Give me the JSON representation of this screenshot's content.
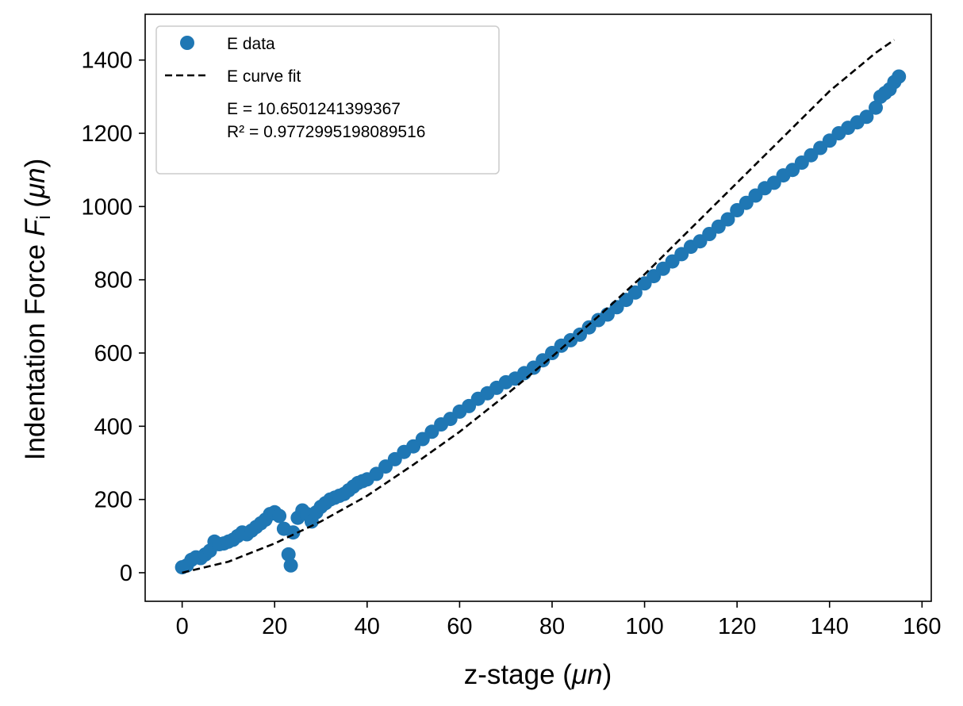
{
  "chart_data": {
    "type": "scatter",
    "title": "",
    "xlabel": {
      "prefix": "z-stage (",
      "unit": "μn",
      "suffix": ")"
    },
    "ylabel": {
      "prefix": "Indentation Force ",
      "symbol": "F",
      "subscript": "i",
      "middle": " (",
      "unit": "μn",
      "suffix": ")"
    },
    "xlim": [
      -8,
      162
    ],
    "ylim": [
      -78,
      1525
    ],
    "xticks": [
      0,
      20,
      40,
      60,
      80,
      100,
      120,
      140,
      160
    ],
    "yticks": [
      0,
      200,
      400,
      600,
      800,
      1000,
      1200,
      1400
    ],
    "grid": false,
    "legend_position": "top-left",
    "colors": {
      "data": "#1f77b4",
      "fit": "#000000"
    },
    "legend": {
      "entries": [
        {
          "label": "E data",
          "marker": "circle"
        },
        {
          "label": "E curve fit",
          "marker": "dashed-line"
        }
      ],
      "annotation": [
        "E = 10.6501241399367",
        "R² = 0.9772995198089516"
      ]
    },
    "series": [
      {
        "name": "E data",
        "style": "markers",
        "x": [
          0,
          1,
          2,
          3,
          4,
          5,
          6,
          7,
          8,
          9,
          10,
          11,
          12,
          13,
          14,
          15,
          16,
          17,
          18,
          19,
          20,
          21,
          22,
          23,
          23.5,
          24,
          25,
          26,
          27,
          28,
          29,
          30,
          31,
          32,
          33,
          34,
          35,
          36,
          37,
          38,
          39,
          40,
          42,
          44,
          46,
          48,
          50,
          52,
          54,
          56,
          58,
          60,
          62,
          64,
          66,
          68,
          70,
          72,
          74,
          76,
          78,
          80,
          82,
          84,
          86,
          88,
          90,
          92,
          94,
          96,
          98,
          100,
          102,
          104,
          106,
          108,
          110,
          112,
          114,
          116,
          118,
          120,
          122,
          124,
          126,
          128,
          130,
          132,
          134,
          136,
          138,
          140,
          142,
          144,
          146,
          148,
          150,
          151,
          152,
          153,
          154,
          155
        ],
        "y": [
          15,
          20,
          35,
          42,
          40,
          50,
          60,
          85,
          78,
          80,
          85,
          90,
          100,
          110,
          105,
          115,
          125,
          135,
          145,
          160,
          165,
          155,
          120,
          50,
          20,
          110,
          150,
          170,
          160,
          140,
          165,
          180,
          190,
          200,
          205,
          210,
          215,
          225,
          235,
          245,
          250,
          255,
          270,
          290,
          310,
          330,
          345,
          365,
          385,
          405,
          420,
          440,
          455,
          475,
          490,
          505,
          520,
          530,
          545,
          560,
          580,
          600,
          620,
          635,
          650,
          670,
          690,
          705,
          725,
          745,
          765,
          790,
          810,
          830,
          850,
          870,
          890,
          905,
          925,
          945,
          965,
          990,
          1010,
          1030,
          1050,
          1065,
          1085,
          1100,
          1120,
          1140,
          1160,
          1180,
          1200,
          1215,
          1230,
          1245,
          1270,
          1300,
          1310,
          1320,
          1340,
          1355
        ]
      },
      {
        "name": "E curve fit",
        "style": "dashed-line",
        "x": [
          0,
          10,
          20,
          30,
          40,
          50,
          60,
          70,
          80,
          90,
          100,
          110,
          120,
          130,
          140,
          150,
          154
        ],
        "y": [
          0,
          30,
          80,
          140,
          210,
          295,
          385,
          485,
          590,
          700,
          815,
          940,
          1065,
          1190,
          1315,
          1420,
          1455
        ]
      }
    ]
  }
}
